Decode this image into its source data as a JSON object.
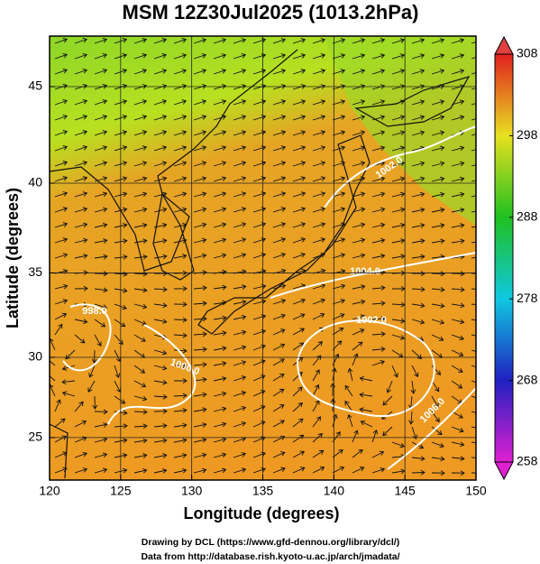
{
  "map": {
    "title": "MSM 12Z30Jul2025 (1013.2hPa)",
    "xlabel": "Longitude (degrees)",
    "ylabel": "Latitude  (degrees)",
    "lonlim": [
      120,
      150
    ],
    "xticks": [
      120,
      125,
      130,
      135,
      140,
      145,
      150
    ],
    "yticks": [
      25,
      30,
      35,
      40,
      45
    ],
    "colorbar": {
      "lim": [
        258,
        308
      ],
      "ticks": [
        258,
        268,
        278,
        288,
        298,
        308
      ]
    },
    "contour_labels": [
      "998.0",
      "1000.0",
      "1004.0",
      "1002.0",
      "1002.0",
      "1006.0"
    ],
    "credits": [
      "Drawing by DCL (https://www.gfd-dennou.org/library/dcl/)",
      "Data from http://database.rish.kyoto-u.ac.jp/arch/jmadata/"
    ]
  }
}
